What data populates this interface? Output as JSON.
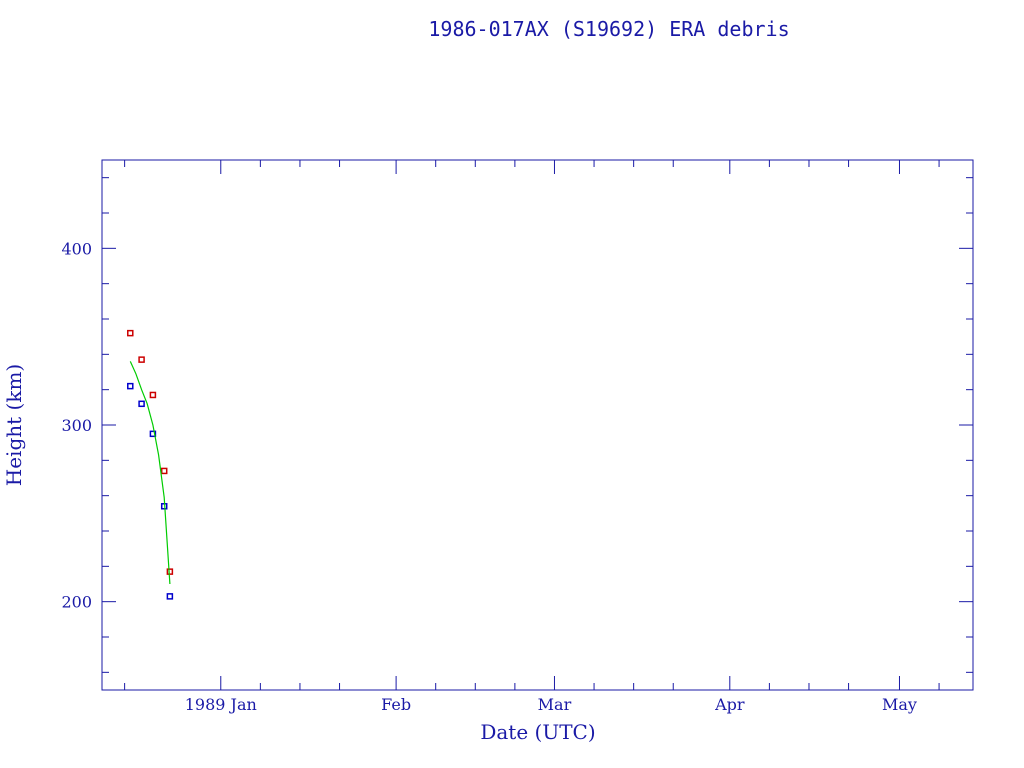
{
  "colors": {
    "axis": "#1a1aa6",
    "apogee": "#cc0000",
    "perigee": "#0000cc",
    "fit": "#00cc00"
  },
  "chart_data": {
    "type": "scatter",
    "title": "1986-017AX (S19692) ERA debris",
    "xlabel": "Date (UTC)",
    "ylabel": "Height (km)",
    "xlim": [
      "1988-12-11",
      "1989-05-14"
    ],
    "ylim": [
      150,
      450
    ],
    "y_ticks": [
      200,
      300,
      400
    ],
    "x_ticks": [
      {
        "date": "1989-01-01",
        "label": "1989 Jan"
      },
      {
        "date": "1989-02-01",
        "label": "Feb"
      },
      {
        "date": "1989-03-01",
        "label": "Mar"
      },
      {
        "date": "1989-04-01",
        "label": "Apr"
      },
      {
        "date": "1989-05-01",
        "label": "May"
      }
    ],
    "x_minor_tick_dates": [
      "1988-12-15",
      "1989-01-08",
      "1989-01-15",
      "1989-01-22",
      "1989-02-08",
      "1989-02-15",
      "1989-02-22",
      "1989-03-08",
      "1989-03-15",
      "1989-03-22",
      "1989-04-08",
      "1989-04-15",
      "1989-04-22",
      "1989-05-08"
    ],
    "y_minor_ticks": [
      160,
      180,
      220,
      240,
      260,
      280,
      320,
      340,
      360,
      380,
      420,
      440
    ],
    "grid": false,
    "series": [
      {
        "marker": "square",
        "color": "#cc0000",
        "x": [
          "1988-12-16",
          "1988-12-18",
          "1988-12-20",
          "1988-12-22",
          "1988-12-23"
        ],
        "y": [
          352,
          337,
          317,
          274,
          217
        ]
      },
      {
        "marker": "square",
        "color": "#0000cc",
        "x": [
          "1988-12-16",
          "1988-12-18",
          "1988-12-20",
          "1988-12-22",
          "1988-12-23"
        ],
        "y": [
          322,
          312,
          295,
          254,
          203
        ]
      },
      {
        "marker": "line",
        "color": "#00cc00",
        "x": [
          "1988-12-16",
          "1988-12-17",
          "1988-12-18",
          "1988-12-19",
          "1988-12-20",
          "1988-12-21",
          "1988-12-22",
          "1988-12-23"
        ],
        "y": [
          336,
          329,
          320,
          312,
          300,
          283,
          259,
          210
        ]
      }
    ]
  }
}
